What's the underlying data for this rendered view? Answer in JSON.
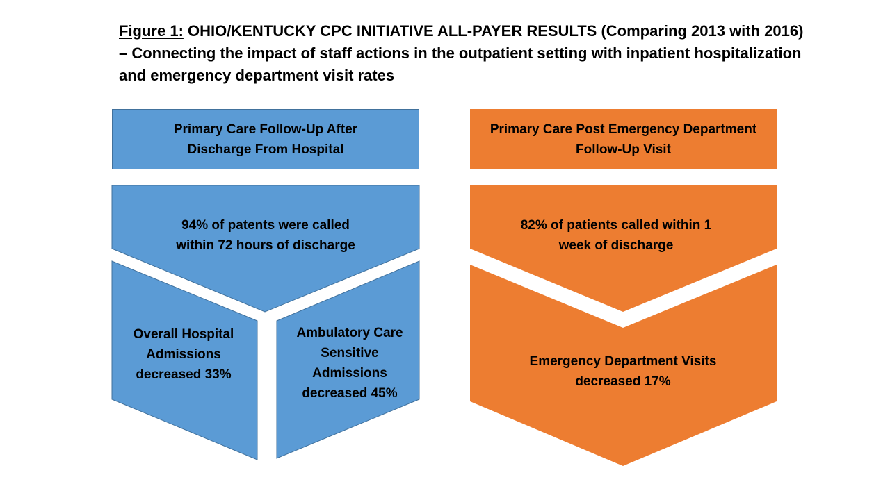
{
  "title": {
    "prefix": "Figure 1:",
    "text": " OHIO/KENTUCKY CPC INITIATIVE ALL-PAYER RESULTS (Comparing 2013 with 2016) – Connecting the impact of staff actions in the outpatient setting with inpatient hospitalization and emergency department visit rates"
  },
  "colors": {
    "blue": "#5b9bd5",
    "blue_border": "#41719c",
    "orange": "#ed7d31"
  },
  "left_column": {
    "header_line1": "Primary Care Follow-Up After",
    "header_line2": "Discharge From Hospital",
    "step_line1": "94% of patents were called",
    "step_line2": "within 72 hours of discharge",
    "result_left_line1": "Overall Hospital",
    "result_left_line2": "Admissions",
    "result_left_line3": "decreased 33%",
    "result_right_line1": "Ambulatory Care",
    "result_right_line2": "Sensitive",
    "result_right_line3": "Admissions",
    "result_right_line4": "decreased 45%"
  },
  "right_column": {
    "header_line1": "Primary Care Post Emergency Department",
    "header_line2": "Follow-Up Visit",
    "step_line1": "82% of patients called within 1",
    "step_line2": "week of discharge",
    "result_line1": "Emergency Department Visits",
    "result_line2": "decreased 17%"
  }
}
